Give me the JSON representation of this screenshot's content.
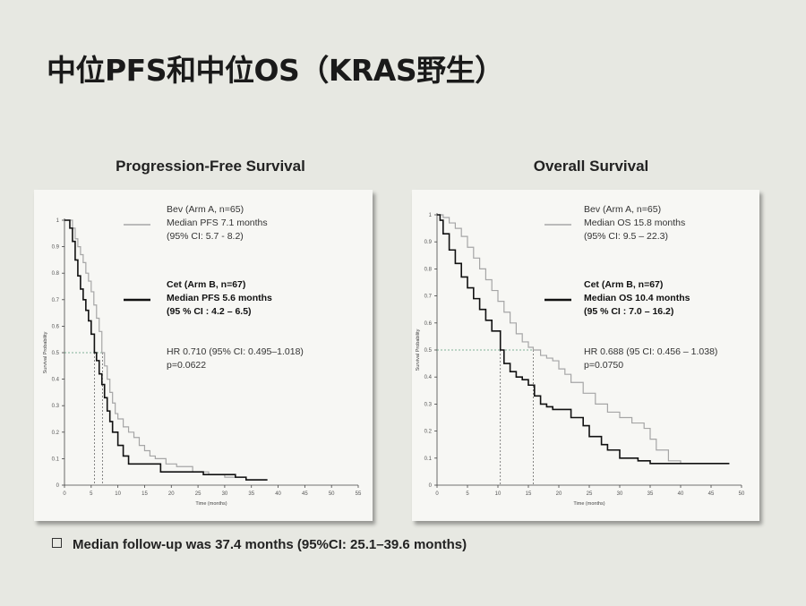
{
  "title": "中位PFS和中位OS（KRAS野生）",
  "footnote": "Median follow-up was 37.4 months (95%CI: 25.1–39.6 months)",
  "colors": {
    "bev": "#a6a6a6",
    "cet": "#111111",
    "median_line": "#5a9a7a"
  },
  "chart_data": [
    {
      "type": "line",
      "title": "Progression-Free Survival",
      "xlabel": "Time (months)",
      "ylabel": "Survival Probability",
      "xlim": [
        0,
        55
      ],
      "ylim": [
        0,
        1
      ],
      "xticks": [
        0,
        5,
        10,
        15,
        20,
        25,
        30,
        35,
        40,
        45,
        50,
        55
      ],
      "yticks": [
        0,
        0.1,
        0.2,
        0.3,
        0.4,
        0.5,
        0.6,
        0.7,
        0.8,
        0.9,
        1
      ],
      "median_y": 0.5,
      "legend": [
        {
          "lines": [
            "Bev (Arm A, n=65)",
            "Median PFS 7.1 months",
            "(95% CI: 5.7 - 8.2)"
          ],
          "bold": false
        },
        {
          "lines": [
            "Cet (Arm B, n=67)",
            "Median PFS 5.6 months",
            "(95 % CI : 4.2 – 6.5)"
          ],
          "bold": true
        }
      ],
      "stats": [
        "HR 0.710 (95% CI: 0.495–1.018)",
        "p=0.0622"
      ],
      "series": [
        {
          "name": "Bev (Arm A, n=65)",
          "medians": [
            7.1
          ],
          "x": [
            0,
            1,
            1.5,
            2,
            2.5,
            3,
            3.5,
            4,
            4.5,
            5,
            5.5,
            6,
            6.5,
            7,
            7.5,
            8,
            8.5,
            9,
            9.5,
            10,
            11,
            12,
            13,
            14,
            15,
            16,
            17,
            19,
            21,
            24,
            27,
            30,
            34,
            38
          ],
          "y": [
            1,
            1,
            0.97,
            0.93,
            0.9,
            0.87,
            0.84,
            0.8,
            0.77,
            0.73,
            0.68,
            0.63,
            0.58,
            0.5,
            0.45,
            0.4,
            0.35,
            0.31,
            0.27,
            0.25,
            0.22,
            0.2,
            0.18,
            0.15,
            0.13,
            0.11,
            0.1,
            0.08,
            0.07,
            0.05,
            0.04,
            0.03,
            0.02,
            0.02
          ]
        },
        {
          "name": "Cet (Arm B, n=67)",
          "medians": [
            5.6
          ],
          "x": [
            0,
            0.5,
            1,
            1.5,
            2,
            2.5,
            3,
            3.5,
            4,
            4.5,
            5,
            5.6,
            6,
            6.5,
            7,
            7.5,
            8,
            8.5,
            9,
            10,
            11,
            12,
            14,
            16,
            18,
            26,
            32,
            34,
            38
          ],
          "y": [
            1,
            1,
            0.97,
            0.92,
            0.85,
            0.79,
            0.74,
            0.7,
            0.66,
            0.62,
            0.57,
            0.5,
            0.47,
            0.42,
            0.38,
            0.33,
            0.28,
            0.24,
            0.2,
            0.15,
            0.11,
            0.08,
            0.08,
            0.08,
            0.05,
            0.04,
            0.03,
            0.02,
            0.02
          ]
        }
      ]
    },
    {
      "type": "line",
      "title": "Overall Survival",
      "xlabel": "Time (months)",
      "ylabel": "Survival Probability",
      "xlim": [
        0,
        50
      ],
      "ylim": [
        0,
        1
      ],
      "xticks": [
        0,
        5,
        10,
        15,
        20,
        25,
        30,
        35,
        40,
        45,
        50
      ],
      "yticks": [
        0,
        0.1,
        0.2,
        0.3,
        0.4,
        0.5,
        0.6,
        0.7,
        0.8,
        0.9,
        1
      ],
      "median_y": 0.5,
      "legend": [
        {
          "lines": [
            "Bev (Arm A, n=65)",
            "Median OS 15.8 months",
            "(95% CI: 9.5 – 22.3)"
          ],
          "bold": false
        },
        {
          "lines": [
            "Cet (Arm B, n=67)",
            "Median OS 10.4 months",
            "(95 % CI : 7.0 – 16.2)"
          ],
          "bold": true
        }
      ],
      "stats": [
        "HR 0.688 (95 CI: 0.456 – 1.038)",
        "p=0.0750"
      ],
      "series": [
        {
          "name": "Bev (Arm A, n=65)",
          "medians": [
            15.8
          ],
          "x": [
            0,
            1,
            2,
            3,
            4,
            5,
            6,
            7,
            8,
            9,
            10,
            11,
            12,
            13,
            14,
            15,
            15.8,
            17,
            18,
            19,
            20,
            21,
            22,
            24,
            26,
            28,
            30,
            32,
            34,
            35,
            36,
            38,
            40,
            42,
            44,
            46,
            48
          ],
          "y": [
            1,
            0.99,
            0.97,
            0.95,
            0.92,
            0.88,
            0.84,
            0.8,
            0.76,
            0.72,
            0.68,
            0.64,
            0.6,
            0.56,
            0.53,
            0.51,
            0.5,
            0.48,
            0.47,
            0.46,
            0.43,
            0.41,
            0.38,
            0.34,
            0.3,
            0.27,
            0.25,
            0.23,
            0.21,
            0.17,
            0.13,
            0.09,
            0.08,
            0.08,
            0.08,
            0.08,
            0.08
          ]
        },
        {
          "name": "Cet (Arm B, n=67)",
          "medians": [
            10.4
          ],
          "x": [
            0,
            0.5,
            1,
            2,
            3,
            4,
            5,
            6,
            7,
            8,
            9,
            10.4,
            11,
            12,
            13,
            14,
            15,
            16,
            17,
            18,
            19,
            20,
            22,
            24,
            25,
            27,
            28,
            30,
            33,
            35,
            37,
            40,
            44,
            48
          ],
          "y": [
            1,
            0.98,
            0.93,
            0.87,
            0.82,
            0.77,
            0.73,
            0.69,
            0.65,
            0.61,
            0.57,
            0.5,
            0.45,
            0.42,
            0.4,
            0.39,
            0.37,
            0.33,
            0.3,
            0.29,
            0.28,
            0.28,
            0.25,
            0.22,
            0.18,
            0.15,
            0.13,
            0.1,
            0.09,
            0.08,
            0.08,
            0.08,
            0.08,
            0.08
          ]
        }
      ]
    }
  ]
}
